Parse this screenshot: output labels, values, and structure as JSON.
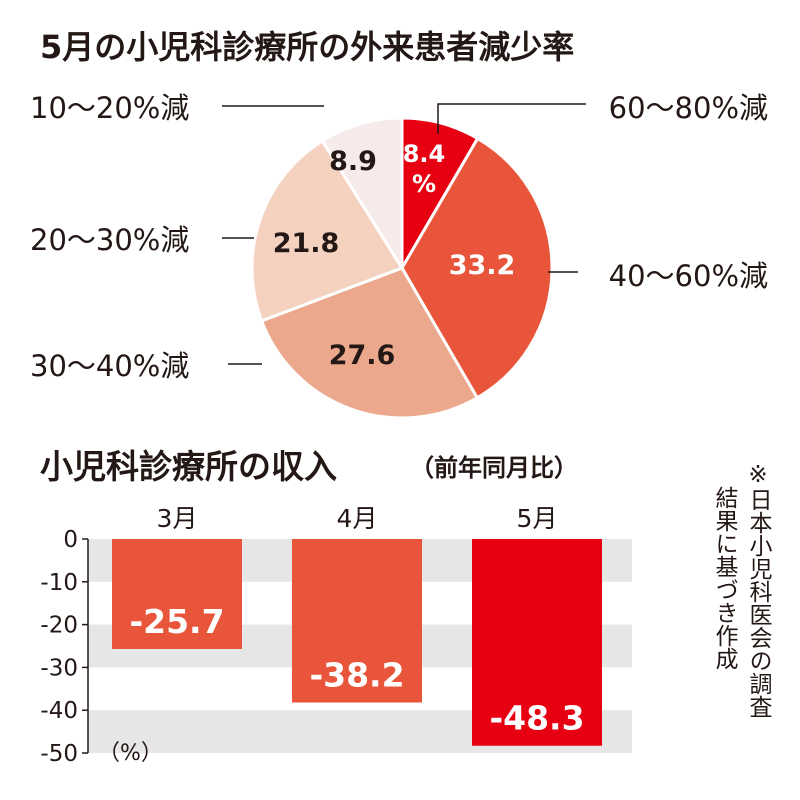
{
  "colors": {
    "slice_60_80": "#e60012",
    "slice_40_60": "#e8553a",
    "slice_30_40": "#eba88c",
    "slice_20_30": "#f4d2bf",
    "slice_10_20": "#f6eaea",
    "bar_3": "#e8553a",
    "bar_4": "#e8553a",
    "bar_5": "#e60012",
    "band": "#e6e6e6"
  },
  "chart_data": [
    {
      "type": "pie",
      "title": "5月の小児科診療所の外来患者減少率",
      "slices": [
        {
          "label": "60～80%減",
          "value": 8.4,
          "value_text": "8.4%",
          "color": "#e60012"
        },
        {
          "label": "40～60%減",
          "value": 33.2,
          "value_text": "33.2",
          "color": "#e8553a"
        },
        {
          "label": "30～40%減",
          "value": 27.6,
          "value_text": "27.6",
          "color": "#eba88c"
        },
        {
          "label": "20～30%減",
          "value": 21.8,
          "value_text": "21.8",
          "color": "#f4d2bf"
        },
        {
          "label": "10～20%減",
          "value": 8.9,
          "value_text": "8.9",
          "color": "#f6eaea"
        }
      ]
    },
    {
      "type": "bar",
      "title": "小児科診療所の収入",
      "subtitle": "（前年同月比）",
      "categories": [
        "3月",
        "4月",
        "5月"
      ],
      "values": [
        -25.7,
        -38.2,
        -48.3
      ],
      "ylim": [
        -50,
        0
      ],
      "yticks": [
        "0",
        "-10",
        "-20",
        "-30",
        "-40",
        "-50"
      ],
      "unit": "（%）",
      "source_lines": [
        "※日本小児科医会の調査",
        "結果に基づき作成"
      ]
    }
  ]
}
